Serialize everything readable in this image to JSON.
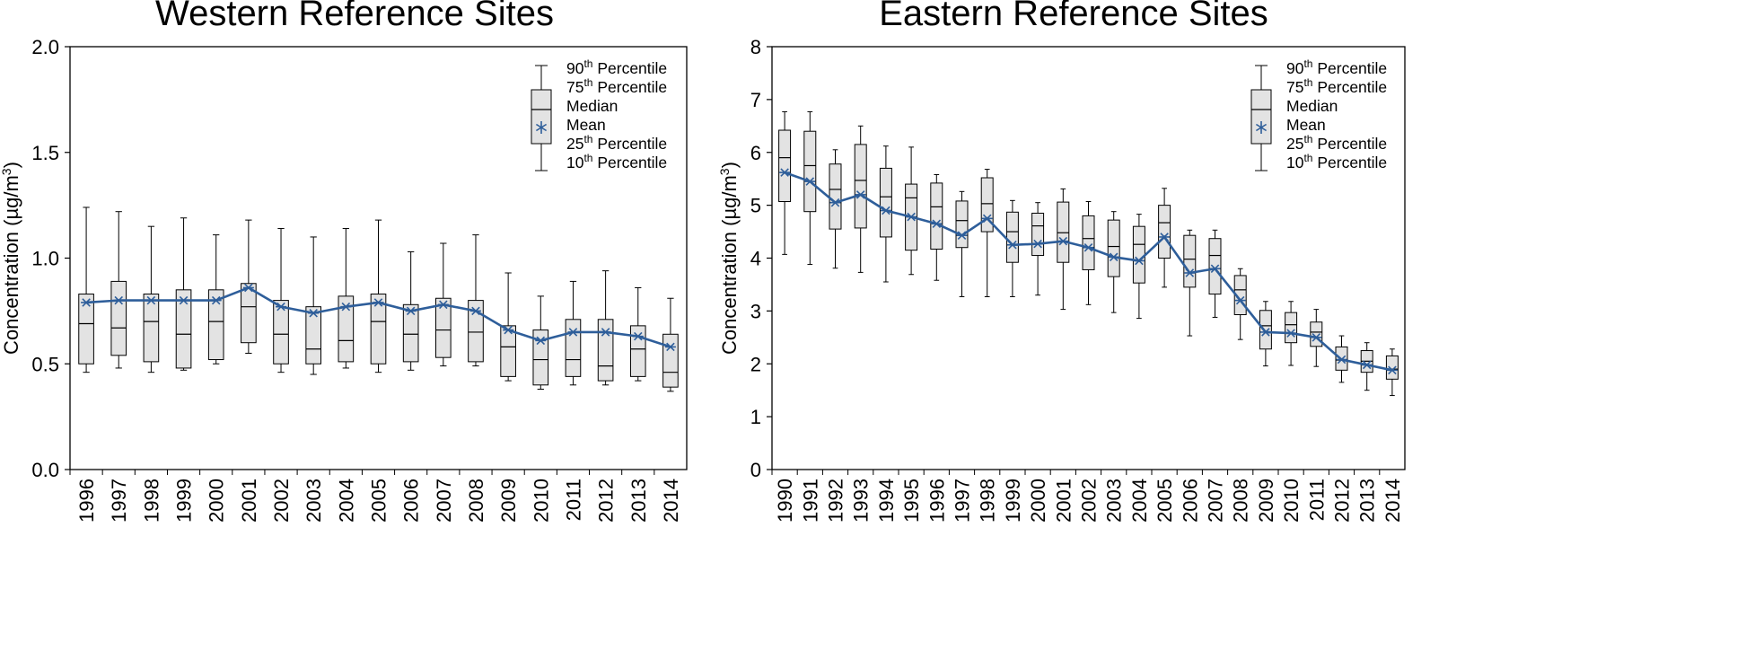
{
  "chart_data": [
    {
      "type": "box",
      "title": "Western Reference Sites",
      "ylabel_prefix": "Concentration (µg/m",
      "ylabel_sup": "3",
      "ylabel_suffix": ")",
      "ylim": [
        0.0,
        2.0
      ],
      "yticks": [
        "0.0",
        "0.5",
        "1.0",
        "1.5",
        "2.0"
      ],
      "categories": [
        "1996",
        "1997",
        "1998",
        "1999",
        "2000",
        "2001",
        "2002",
        "2003",
        "2004",
        "2005",
        "2006",
        "2007",
        "2008",
        "2009",
        "2010",
        "2011",
        "2012",
        "2013",
        "2014"
      ],
      "p90": [
        1.24,
        1.22,
        1.15,
        1.19,
        1.11,
        1.18,
        1.14,
        1.1,
        1.14,
        1.18,
        1.03,
        1.07,
        1.11,
        0.93,
        0.82,
        0.89,
        0.94,
        0.86,
        0.81
      ],
      "p75": [
        0.83,
        0.89,
        0.83,
        0.85,
        0.85,
        0.88,
        0.8,
        0.77,
        0.82,
        0.83,
        0.78,
        0.81,
        0.8,
        0.68,
        0.66,
        0.71,
        0.71,
        0.68,
        0.64
      ],
      "median": [
        0.69,
        0.67,
        0.7,
        0.64,
        0.7,
        0.77,
        0.64,
        0.57,
        0.61,
        0.7,
        0.64,
        0.66,
        0.65,
        0.58,
        0.52,
        0.52,
        0.49,
        0.57,
        0.46
      ],
      "mean": [
        0.79,
        0.8,
        0.8,
        0.8,
        0.8,
        0.86,
        0.77,
        0.74,
        0.77,
        0.79,
        0.75,
        0.78,
        0.75,
        0.66,
        0.61,
        0.65,
        0.65,
        0.63,
        0.58
      ],
      "p25": [
        0.5,
        0.54,
        0.51,
        0.48,
        0.52,
        0.6,
        0.5,
        0.5,
        0.51,
        0.5,
        0.51,
        0.53,
        0.51,
        0.44,
        0.4,
        0.44,
        0.42,
        0.44,
        0.39
      ],
      "p10": [
        0.46,
        0.48,
        0.46,
        0.47,
        0.5,
        0.55,
        0.46,
        0.45,
        0.48,
        0.46,
        0.47,
        0.49,
        0.49,
        0.42,
        0.38,
        0.4,
        0.4,
        0.42,
        0.37
      ],
      "legend": {
        "p90": "90",
        "p75": "75",
        "median": "Median",
        "mean": "Mean",
        "p25": "25",
        "p10": "10",
        "suffix": "th",
        "word": " Percentile"
      },
      "legend_position": "top-right",
      "colors": {
        "box_fill": "#e3e3e3",
        "mean_line": "#2e5e9a",
        "axis": "#000000"
      }
    },
    {
      "type": "box",
      "title": "Eastern Reference Sites",
      "ylabel_prefix": "Concentration (µg/m",
      "ylabel_sup": "3",
      "ylabel_suffix": ")",
      "ylim": [
        0,
        8
      ],
      "yticks": [
        "0",
        "1",
        "2",
        "3",
        "4",
        "5",
        "6",
        "7",
        "8"
      ],
      "categories": [
        "1990",
        "1991",
        "1992",
        "1993",
        "1994",
        "1995",
        "1996",
        "1997",
        "1998",
        "1999",
        "2000",
        "2001",
        "2002",
        "2003",
        "2004",
        "2005",
        "2006",
        "2007",
        "2008",
        "2009",
        "2010",
        "2011",
        "2012",
        "2013",
        "2014"
      ],
      "p90": [
        6.77,
        6.77,
        6.05,
        6.5,
        6.12,
        6.1,
        5.58,
        5.26,
        5.68,
        5.09,
        5.05,
        5.31,
        5.07,
        4.88,
        4.83,
        5.32,
        4.53,
        4.53,
        3.8,
        3.18,
        3.18,
        3.03,
        2.53,
        2.4,
        2.28
      ],
      "p75": [
        6.42,
        6.4,
        5.78,
        6.15,
        5.7,
        5.4,
        5.42,
        5.08,
        5.52,
        4.87,
        4.85,
        5.06,
        4.8,
        4.72,
        4.6,
        5.0,
        4.43,
        4.37,
        3.67,
        3.01,
        2.97,
        2.79,
        2.32,
        2.25,
        2.15
      ],
      "median": [
        5.9,
        5.75,
        5.3,
        5.47,
        5.16,
        5.14,
        4.97,
        4.71,
        5.03,
        4.5,
        4.61,
        4.48,
        4.37,
        4.22,
        4.26,
        4.67,
        3.98,
        4.05,
        3.4,
        2.72,
        2.74,
        2.6,
        2.07,
        2.05,
        1.9
      ],
      "mean": [
        5.62,
        5.45,
        5.05,
        5.2,
        4.9,
        4.78,
        4.65,
        4.43,
        4.75,
        4.25,
        4.27,
        4.32,
        4.2,
        4.02,
        3.95,
        4.4,
        3.72,
        3.8,
        3.2,
        2.6,
        2.58,
        2.5,
        2.08,
        1.98,
        1.88
      ],
      "p25": [
        5.07,
        4.88,
        4.55,
        4.57,
        4.4,
        4.15,
        4.17,
        4.2,
        4.5,
        3.92,
        4.05,
        3.92,
        3.78,
        3.65,
        3.53,
        4.0,
        3.45,
        3.32,
        2.93,
        2.28,
        2.4,
        2.33,
        1.88,
        1.84,
        1.71
      ],
      "p10": [
        4.07,
        3.88,
        3.81,
        3.73,
        3.55,
        3.69,
        3.58,
        3.27,
        3.27,
        3.27,
        3.3,
        3.03,
        3.12,
        2.97,
        2.86,
        3.45,
        2.53,
        2.88,
        2.46,
        1.96,
        1.97,
        1.95,
        1.65,
        1.5,
        1.4
      ],
      "legend": {
        "p90": "90",
        "p75": "75",
        "median": "Median",
        "mean": "Mean",
        "p25": "25",
        "p10": "10",
        "suffix": "th",
        "word": " Percentile"
      },
      "legend_position": "top-right",
      "colors": {
        "box_fill": "#e3e3e3",
        "mean_line": "#2e5e9a",
        "axis": "#000000"
      }
    }
  ]
}
